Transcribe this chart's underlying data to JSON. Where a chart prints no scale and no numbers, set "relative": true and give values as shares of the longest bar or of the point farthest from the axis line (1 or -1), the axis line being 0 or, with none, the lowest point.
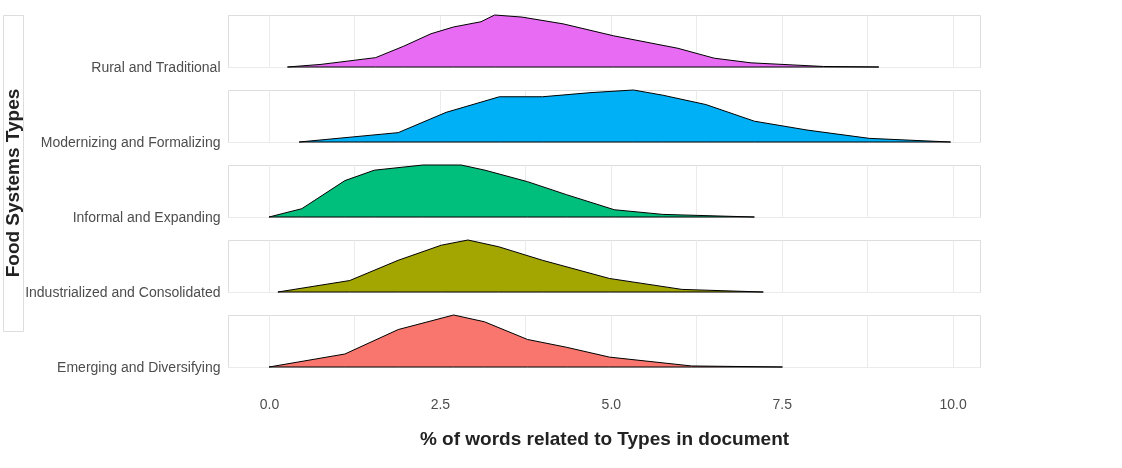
{
  "chart_data": [
    {
      "type": "area",
      "relative": true,
      "ylabel": "Rural and Traditional",
      "grid": "x",
      "tick_labels": false,
      "xlim": [
        -0.6,
        10.4
      ],
      "xticks": [
        0,
        1.25,
        2.5,
        3.75,
        5,
        6.25,
        7.5,
        8.75,
        10
      ],
      "series": [
        {
          "color": "#e76bf3",
          "x": [
            0.27,
            0.76,
            1.56,
            1.97,
            2.37,
            2.7,
            3.1,
            3.3,
            3.7,
            4.3,
            5.04,
            5.98,
            6.51,
            7.05,
            8.11,
            8.92
          ],
          "values": [
            0,
            0.05,
            0.18,
            0.4,
            0.64,
            0.77,
            0.87,
            1,
            0.96,
            0.83,
            0.6,
            0.36,
            0.17,
            0.08,
            0.01,
            0
          ]
        }
      ]
    },
    {
      "type": "area",
      "relative": true,
      "ylabel": "Modernizing and Formalizing",
      "grid": "x",
      "tick_labels": false,
      "xlim": [
        -0.6,
        10.4
      ],
      "xticks": [
        0,
        1.25,
        2.5,
        3.75,
        5,
        6.25,
        7.5,
        8.75,
        10
      ],
      "series": [
        {
          "color": "#00b0f6",
          "x": [
            0.44,
            1.89,
            2.59,
            3.37,
            4.0,
            4.71,
            5.33,
            5.76,
            6.39,
            7.1,
            7.87,
            8.78,
            9.97
          ],
          "values": [
            0,
            0.18,
            0.57,
            0.87,
            0.87,
            0.95,
            1,
            0.9,
            0.72,
            0.4,
            0.23,
            0.07,
            0
          ]
        }
      ]
    },
    {
      "type": "area",
      "relative": true,
      "ylabel": "Informal and Expanding",
      "annotations": [
        "Food Systems Types"
      ],
      "grid": "x",
      "tick_labels": false,
      "xlim": [
        -0.6,
        10.4
      ],
      "xticks": [
        0,
        1.25,
        2.5,
        3.75,
        5,
        6.25,
        7.5,
        8.75,
        10
      ],
      "series": [
        {
          "color": "#00bf7d",
          "x": [
            0.0,
            0.48,
            1.11,
            1.54,
            2.25,
            2.81,
            3.16,
            3.78,
            4.35,
            5.05,
            5.76,
            7.1
          ],
          "values": [
            0,
            0.16,
            0.7,
            0.9,
            1,
            1,
            0.9,
            0.68,
            0.43,
            0.14,
            0.05,
            0
          ]
        }
      ]
    },
    {
      "type": "area",
      "relative": true,
      "ylabel": "Industrialized and Consolidated",
      "grid": "x",
      "tick_labels": false,
      "xlim": [
        -0.6,
        10.4
      ],
      "xticks": [
        0,
        1.25,
        2.5,
        3.75,
        5,
        6.25,
        7.5,
        8.75,
        10
      ],
      "series": [
        {
          "color": "#a3a500",
          "x": [
            0.13,
            1.18,
            1.89,
            2.52,
            2.91,
            3.36,
            4.0,
            4.98,
            6.04,
            7.23
          ],
          "values": [
            0,
            0.22,
            0.61,
            0.9,
            1,
            0.87,
            0.61,
            0.26,
            0.05,
            0
          ]
        }
      ]
    },
    {
      "type": "area",
      "relative": true,
      "ylabel": "Emerging and Diversifying",
      "xlabel": "% of words related to Types in document",
      "grid": "x",
      "tick_labels": "x",
      "xlim": [
        -0.6,
        10.4
      ],
      "xticks": [
        {
          "value": 0,
          "label": "0.0"
        },
        {
          "value": 1.25,
          "label": null
        },
        {
          "value": 2.5,
          "label": "2.5"
        },
        {
          "value": 3.75,
          "label": null
        },
        {
          "value": 5,
          "label": "5.0"
        },
        {
          "value": 6.25,
          "label": null
        },
        {
          "value": 7.5,
          "label": "7.5"
        },
        {
          "value": 8.75,
          "label": null
        },
        {
          "value": 10,
          "label": "10.0"
        }
      ],
      "series": [
        {
          "color": "#f8766d",
          "x": [
            0.0,
            1.11,
            1.89,
            2.7,
            3.15,
            3.78,
            4.35,
            4.98,
            6.18,
            7.51
          ],
          "values": [
            0,
            0.25,
            0.72,
            1,
            0.87,
            0.53,
            0.38,
            0.19,
            0.02,
            0
          ]
        }
      ]
    }
  ]
}
